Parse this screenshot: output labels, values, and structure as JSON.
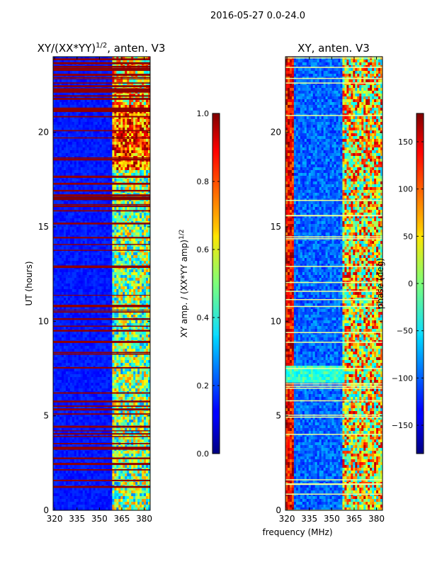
{
  "suptitle": "2016-05-27 0.0-24.0",
  "chart_data": [
    {
      "type": "heatmap",
      "title_main": "XY/(XX*YY)",
      "title_exp": "1/2",
      "title_suffix": ", anten. V3",
      "ylabel": "UT (hours)",
      "x_ticks": [
        "320",
        "335",
        "350",
        "365",
        "380"
      ],
      "x_tick_values": [
        320,
        335,
        350,
        365,
        380
      ],
      "y_ticks": [
        "0",
        "5",
        "10",
        "15",
        "20"
      ],
      "y_tick_values": [
        0,
        5,
        10,
        15,
        20
      ],
      "xlim": [
        319,
        384
      ],
      "ylim": [
        0,
        24
      ],
      "colorbar": {
        "label_main": "XY amp. / (XX*YY amp)",
        "label_exp": "1/2",
        "ticks": [
          "0.0",
          "0.2",
          "0.4",
          "0.6",
          "0.8",
          "1.0"
        ],
        "tick_values": [
          0.0,
          0.2,
          0.4,
          0.6,
          0.8,
          1.0
        ],
        "range": [
          0.0,
          1.0
        ]
      }
    },
    {
      "type": "heatmap",
      "title": "XY, anten. V3",
      "xlabel": "frequency (MHz)",
      "x_ticks": [
        "320",
        "335",
        "350",
        "365",
        "380"
      ],
      "x_tick_values": [
        320,
        335,
        350,
        365,
        380
      ],
      "y_ticks": [
        "0",
        "5",
        "10",
        "15",
        "20"
      ],
      "y_tick_values": [
        0,
        5,
        10,
        15,
        20
      ],
      "xlim": [
        319,
        384
      ],
      "ylim": [
        0,
        24
      ],
      "colorbar": {
        "label": "phase (deg)",
        "ticks": [
          "−150",
          "−100",
          "−50",
          "0",
          "50",
          "100",
          "150"
        ],
        "tick_values": [
          -150,
          -100,
          -50,
          0,
          50,
          100,
          150
        ],
        "range": [
          -180,
          180
        ]
      }
    }
  ]
}
